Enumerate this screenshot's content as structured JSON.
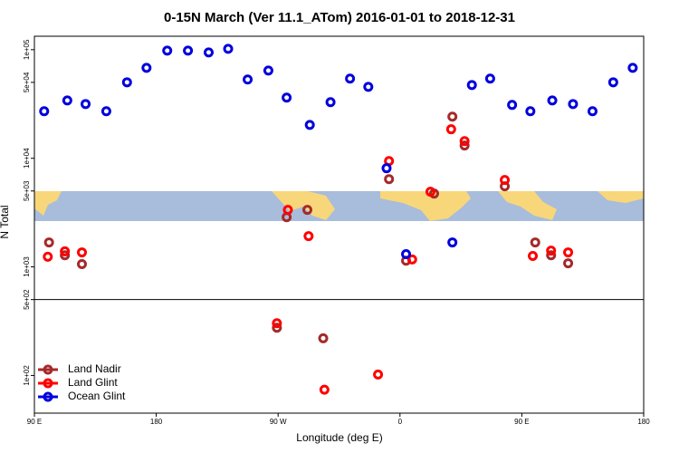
{
  "chart_data": {
    "type": "scatter",
    "title": "0-15N March (Ver 11.1_ATom)   2016-01-01 to 2018-12-31",
    "x_label": "Longitude (deg E)",
    "y_label": "N Total",
    "log_y": true,
    "legend": "bottom-left",
    "xlim": [
      0,
      5
    ],
    "xticks": [
      {
        "value": 0,
        "label": "90 E"
      },
      {
        "value": 1,
        "label": "180"
      },
      {
        "value": 2,
        "label": "90 W"
      },
      {
        "value": 3,
        "label": "0"
      },
      {
        "value": 4,
        "label": "90 E"
      },
      {
        "value": 5,
        "label": "180"
      }
    ],
    "ylim": [
      45,
      133000
    ],
    "yticks": [
      {
        "value": 100000,
        "label": "1e+05"
      },
      {
        "value": 50000,
        "label": "5e+04"
      },
      {
        "value": 10000,
        "label": "1e+04"
      },
      {
        "value": 5000,
        "label": "5e+03"
      },
      {
        "value": 1000,
        "label": "1e+03"
      },
      {
        "value": 500,
        "label": "5e+02"
      },
      {
        "value": 100,
        "label": "1e+02"
      }
    ],
    "series": [
      {
        "name": "Land Nadir",
        "color": "#a52a2a",
        "x": [
          0.12,
          0.25,
          0.39,
          2.07,
          2.24,
          2.91,
          3.05,
          3.28,
          3.43,
          3.53,
          3.86,
          4.11,
          4.24,
          4.38,
          1.99,
          2.37
        ],
        "values": [
          1680,
          1280,
          1060,
          2870,
          3350,
          6430,
          1140,
          4730,
          24200,
          13100,
          5520,
          1680,
          1280,
          1080,
          275,
          220
        ]
      },
      {
        "name": "Land Glint",
        "color": "#ff0000",
        "x": [
          0.11,
          0.25,
          0.39,
          2.08,
          2.25,
          2.91,
          3.1,
          3.25,
          3.42,
          3.53,
          3.86,
          4.09,
          4.24,
          4.38,
          1.99,
          2.38,
          2.82
        ],
        "values": [
          1240,
          1390,
          1360,
          3350,
          1920,
          9440,
          1170,
          4920,
          18500,
          14400,
          6310,
          1260,
          1410,
          1360,
          303,
          74,
          102
        ]
      },
      {
        "name": "Ocean Glint",
        "color": "#0000dd",
        "x": [
          0.08,
          0.27,
          0.42,
          0.59,
          0.76,
          0.92,
          1.09,
          1.26,
          1.43,
          1.59,
          1.75,
          1.92,
          2.07,
          2.26,
          2.43,
          2.59,
          2.74,
          2.89,
          3.05,
          3.43,
          3.59,
          3.74,
          3.92,
          4.07,
          4.25,
          4.42,
          4.58,
          4.75,
          4.91
        ],
        "values": [
          27100,
          34100,
          31600,
          27100,
          50100,
          68100,
          98100,
          98100,
          94400,
          101900,
          53100,
          64300,
          36200,
          20300,
          32900,
          54200,
          45500,
          8100,
          1310,
          1680,
          47300,
          54200,
          31000,
          27100,
          34100,
          31600,
          27100,
          50100,
          68100
        ]
      }
    ]
  }
}
